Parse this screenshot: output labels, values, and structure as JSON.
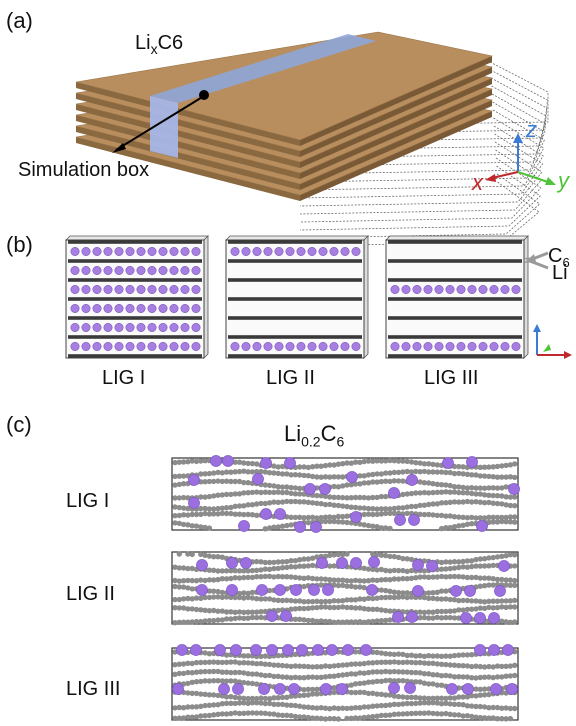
{
  "panel_a": {
    "label": "(a)",
    "material_label": {
      "base": "Li",
      "sub": "x",
      "rest": "C6"
    },
    "annotation": "Simulation box",
    "axes": {
      "z": "z",
      "x": "x",
      "y": "y"
    },
    "colors": {
      "z": "#3a7bd5",
      "x": "#c0282d",
      "y": "#4fc33a",
      "sheet_top": "#b88e5f",
      "sheet_edge": "#8a6840",
      "box": "#8fa6d8"
    }
  },
  "panel_b": {
    "label": "(b)",
    "boxes": [
      {
        "name": "LIG I",
        "li_rows": [
          1,
          2,
          3,
          4,
          5,
          6
        ]
      },
      {
        "name": "LIG II",
        "li_rows": [
          1,
          6
        ]
      },
      {
        "name": "LIG III",
        "li_rows": [
          3,
          6
        ]
      }
    ],
    "legend": {
      "c6": {
        "base": "C",
        "sub": "6"
      },
      "li": "Li"
    },
    "colors": {
      "li": "#a77ee2",
      "li_edge": "#7d58b8",
      "carbon_line": "#3a3a3a",
      "arrow": "#9a9a9a"
    }
  },
  "panel_c": {
    "label": "(c)",
    "title": {
      "base": "Li",
      "sub1": "0.2",
      "mid": "C",
      "sub2": "6"
    },
    "rows": [
      {
        "name": "LIG I"
      },
      {
        "name": "LIG II"
      },
      {
        "name": "LIG III"
      }
    ],
    "colors": {
      "carbon": "#8c8c8c",
      "li": "#9b6fe0"
    }
  }
}
